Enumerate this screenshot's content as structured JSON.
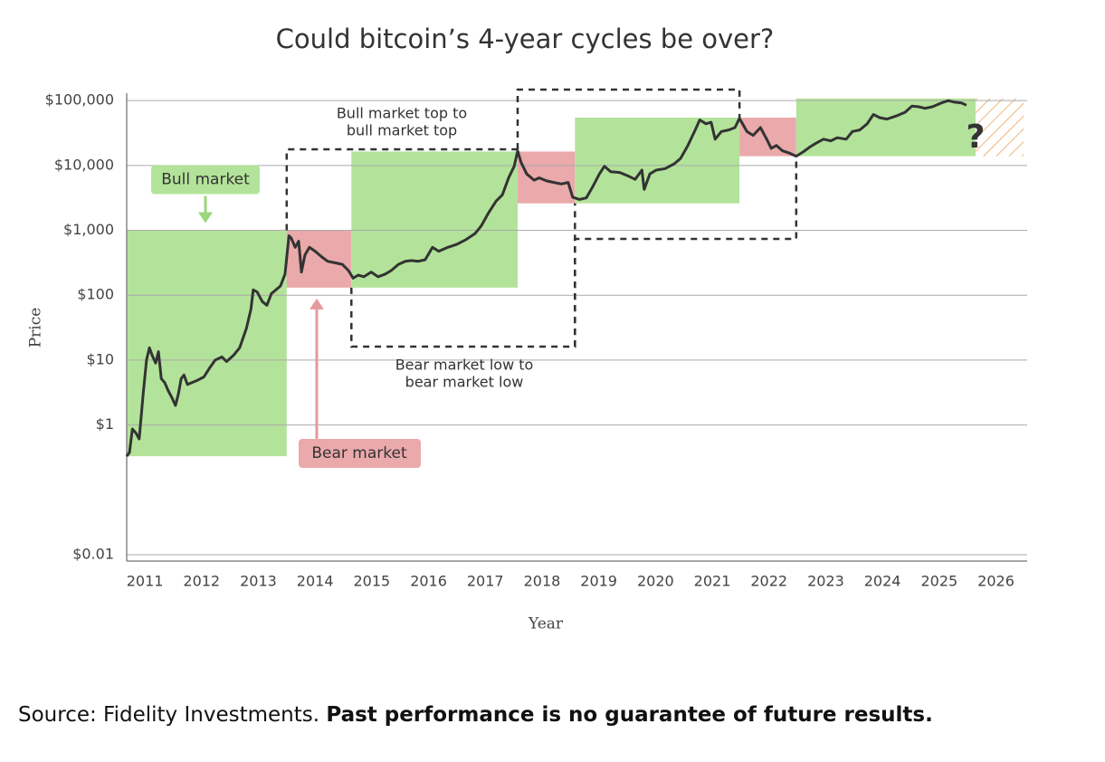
{
  "chart_data": {
    "type": "line",
    "title": "Could bitcoin’s 4-year cycles be over?",
    "x_label": "Year",
    "y_label": "Price",
    "yscale": "log",
    "grid": true,
    "color": "#333333",
    "xlim": [
      2010.68,
      2026.55
    ],
    "xticks": [
      2011,
      2012,
      2013,
      2014,
      2015,
      2016,
      2017,
      2018,
      2019,
      2020,
      2021,
      2022,
      2023,
      2024,
      2025,
      2026
    ],
    "ylim": [
      0.01,
      130000
    ],
    "yticks": [
      {
        "value": 0.01,
        "label": "$0.01"
      },
      {
        "value": 1,
        "label": "$1"
      },
      {
        "value": 10,
        "label": "$10"
      },
      {
        "value": 100,
        "label": "$100"
      },
      {
        "value": 1000,
        "label": "$1,000"
      },
      {
        "value": 10000,
        "label": "$10,000"
      },
      {
        "value": 100000,
        "label": "$100,000"
      }
    ],
    "regions": [
      {
        "x": [
          2010.68,
          2013.5
        ],
        "y": [
          0.33,
          1000
        ],
        "color": "#b3e39a"
      },
      {
        "x": [
          2013.5,
          2014.64
        ],
        "y": [
          131,
          1000
        ],
        "color": "#eaa9ab"
      },
      {
        "x": [
          2014.64,
          2017.57
        ],
        "y": [
          131,
          16400
        ],
        "color": "#b3e39a"
      },
      {
        "x": [
          2017.57,
          2018.58
        ],
        "y": [
          2610,
          16400
        ],
        "color": "#eaa9ab"
      },
      {
        "x": [
          2018.58,
          2021.48
        ],
        "y": [
          2610,
          54700
        ],
        "color": "#b3e39a"
      },
      {
        "x": [
          2021.48,
          2022.48
        ],
        "y": [
          13900,
          54700
        ],
        "color": "#eaa9ab"
      },
      {
        "x": [
          2022.48,
          2025.64
        ],
        "y": [
          13900,
          108000
        ],
        "color": "#b3e39a"
      },
      {
        "x": [
          2025.64,
          2026.49
        ],
        "y": [
          13900,
          108000
        ],
        "color": "#f2c28f",
        "hatch": true
      }
    ],
    "x": [
      2010.68,
      2010.73,
      2010.78,
      2010.84,
      2010.9,
      2010.97,
      2011.03,
      2011.08,
      2011.13,
      2011.19,
      2011.24,
      2011.29,
      2011.35,
      2011.41,
      2011.48,
      2011.54,
      2011.59,
      2011.64,
      2011.69,
      2011.75,
      2011.83,
      2011.93,
      2012.04,
      2012.15,
      2012.24,
      2012.36,
      2012.44,
      2012.56,
      2012.67,
      2012.79,
      2012.87,
      2012.91,
      2012.98,
      2013.07,
      2013.15,
      2013.23,
      2013.31,
      2013.39,
      2013.47,
      2013.54,
      2013.58,
      2013.65,
      2013.71,
      2013.76,
      2013.82,
      2013.9,
      2014.0,
      2014.11,
      2014.22,
      2014.35,
      2014.48,
      2014.59,
      2014.67,
      2014.76,
      2014.86,
      2014.99,
      2015.11,
      2015.23,
      2015.34,
      2015.47,
      2015.59,
      2015.7,
      2015.82,
      2015.94,
      2016.07,
      2016.18,
      2016.34,
      2016.5,
      2016.66,
      2016.82,
      2016.93,
      2017.06,
      2017.19,
      2017.3,
      2017.41,
      2017.51,
      2017.57,
      2017.63,
      2017.73,
      2017.86,
      2017.95,
      2018.08,
      2018.21,
      2018.34,
      2018.46,
      2018.54,
      2018.66,
      2018.78,
      2018.89,
      2019.01,
      2019.1,
      2019.21,
      2019.37,
      2019.53,
      2019.64,
      2019.76,
      2019.8,
      2019.9,
      2020.01,
      2020.17,
      2020.33,
      2020.44,
      2020.57,
      2020.7,
      2020.78,
      2020.89,
      2020.98,
      2021.05,
      2021.16,
      2021.29,
      2021.4,
      2021.48,
      2021.61,
      2021.72,
      2021.85,
      2021.96,
      2022.04,
      2022.13,
      2022.24,
      2022.36,
      2022.48,
      2022.61,
      2022.72,
      2022.83,
      2022.96,
      2023.09,
      2023.2,
      2023.36,
      2023.47,
      2023.6,
      2023.73,
      2023.84,
      2023.95,
      2024.08,
      2024.24,
      2024.4,
      2024.52,
      2024.64,
      2024.75,
      2024.88,
      2025.04,
      2025.16,
      2025.27,
      2025.39,
      2025.48
    ],
    "values": [
      0.33,
      0.38,
      0.87,
      0.76,
      0.61,
      3.0,
      10,
      15.5,
      11.8,
      9.0,
      13.5,
      5.2,
      4.5,
      3.4,
      2.6,
      2.0,
      3.0,
      5.2,
      5.9,
      4.2,
      4.5,
      4.9,
      5.5,
      7.8,
      10,
      11.2,
      9.5,
      11.8,
      15.5,
      31,
      61,
      121,
      112,
      80,
      70,
      106,
      121,
      139,
      210,
      826,
      760,
      547,
      681,
      228,
      416,
      547,
      477,
      394,
      334,
      316,
      299,
      240,
      183,
      204,
      193,
      228,
      193,
      210,
      240,
      299,
      334,
      343,
      334,
      353,
      547,
      477,
      547,
      611,
      719,
      896,
      1180,
      1880,
      2830,
      3530,
      6450,
      9730,
      16800,
      11200,
      7400,
      5940,
      6450,
      5780,
      5470,
      5180,
      5470,
      3250,
      2990,
      3160,
      4640,
      7400,
      9730,
      8030,
      7810,
      6810,
      6110,
      8480,
      4280,
      7400,
      8480,
      8960,
      10600,
      12800,
      20400,
      35300,
      50400,
      43900,
      46400,
      25400,
      33400,
      35300,
      38300,
      53200,
      33400,
      29100,
      38300,
      25400,
      18300,
      20400,
      16800,
      15500,
      13900,
      16400,
      19300,
      22100,
      25400,
      24000,
      26800,
      25400,
      33400,
      35300,
      43900,
      61100,
      54700,
      51800,
      57800,
      66300,
      82500,
      80300,
      76000,
      80300,
      92100,
      100000,
      94600,
      92100,
      84800
    ],
    "annotations": {
      "bull_market": "Bull market",
      "bear_market": "Bear market",
      "top_to_top": [
        "Bull market top to",
        "bull market top"
      ],
      "low_to_low": [
        "Bear market low to",
        "bear market low"
      ],
      "question": "?"
    }
  },
  "source": {
    "text": "Source: Fidelity Investments.",
    "disclaimer": "Past performance is no guarantee of future results."
  }
}
